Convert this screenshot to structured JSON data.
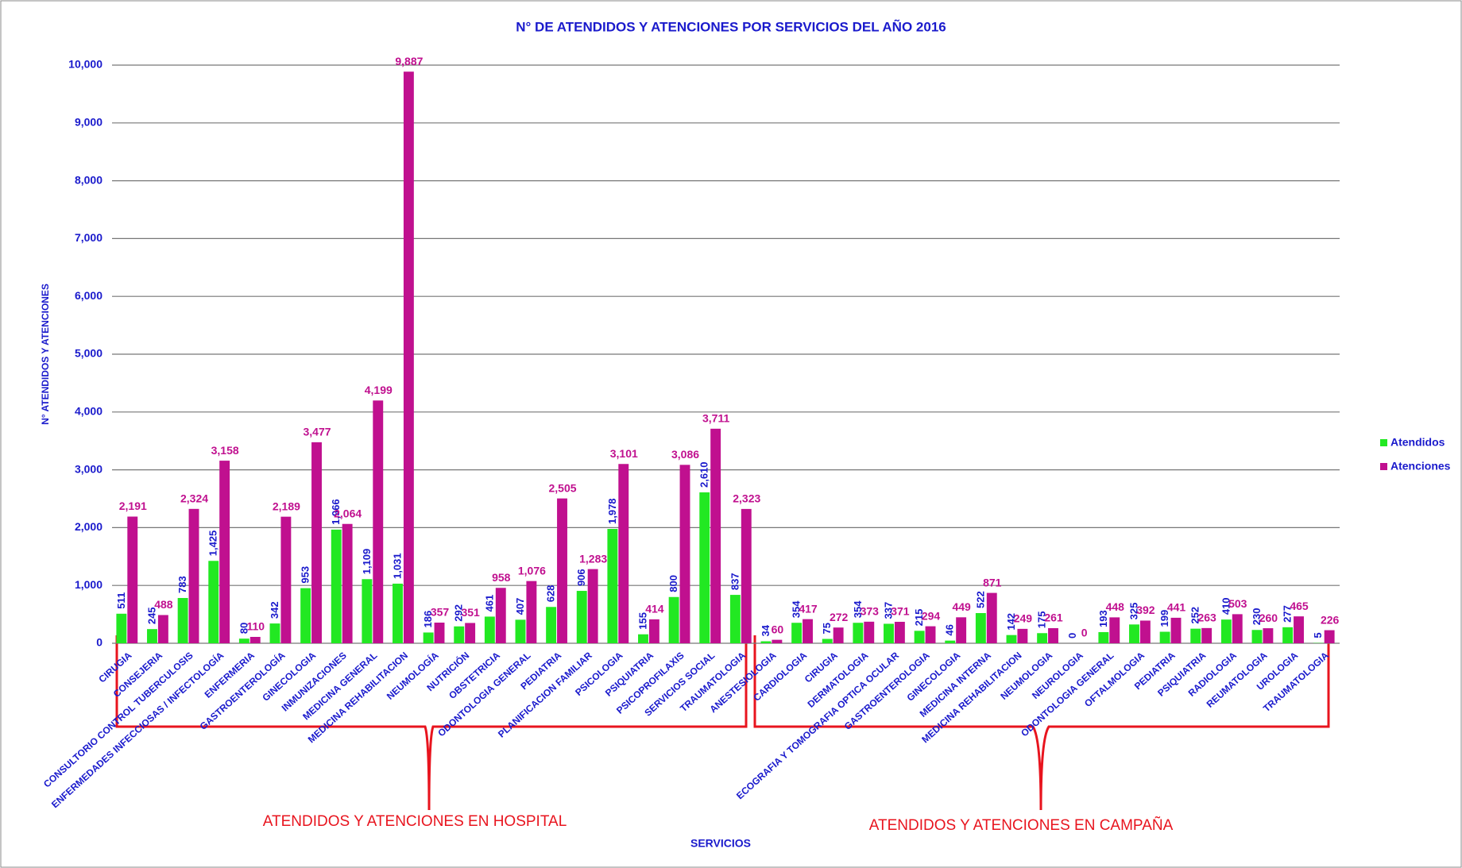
{
  "chart_data": {
    "type": "bar",
    "title": "N° DE ATENDIDOS Y ATENCIONES POR SERVICIOS DEL AÑO 2016",
    "x_label": "SERVICIOS",
    "y_label": "N° ATENDIDOS Y ATENCIONES",
    "annotations": [
      "ATENDIDOS Y ATENCIONES EN HOSPITAL",
      "ATENDIDOS Y ATENCIONES EN CAMPAÑA"
    ],
    "categories": [
      "CIRUGIA",
      "CONSEJERIA",
      "CONSULTORIO CONTROL TUBERCULOSIS",
      "ENFERMEDADES INFECCIOSAS / INFECTOLOGÍA",
      "ENFERMERIA",
      "GASTROENTEROLOGÍA",
      "GINECOLOGIA",
      "INMUNIZACIONES",
      "MEDICINA GENERAL",
      "MEDICINA REHABILITACION",
      "NEUMOLOGÍA",
      "NUTRICIÓN",
      "OBSTETRICIA",
      "ODONTOLOGIA GENERAL",
      "PEDIATRIA",
      "PLANIFICACION FAMILIAR",
      "PSICOLOGIA",
      "PSIQUIATRIA",
      "PSICOPROFILAXIS",
      "SERVICIOS SOCIAL",
      "TRAUMATOLOGIA",
      "ANESTESIOLOGIA",
      "CARDIOLOGIA",
      "CIRUGIA",
      "DERMATOLOGIA",
      "ECOGRAFIA Y TOMOGRAFIA OPTICA OCULAR",
      "GASTROENTEROLOGIA",
      "GINECOLOGIA",
      "MEDICINA INTERNA",
      "MEDICINA REHABILITACION",
      "NEUMOLOGIA",
      "NEUROLOGIA",
      "ODONTOLOGIA GENERAL",
      "OFTALMOLOGIA",
      "PEDIATRIA",
      "PSIQUIATRIA",
      "RADIOLOGIA",
      "REUMATOLOGIA",
      "UROLOGIA",
      "TRAUMATOLOGIA"
    ],
    "series": [
      {
        "name": "Atendidos",
        "color": "#22e822",
        "label_color": "#1a1acc",
        "values": [
          511,
          245,
          783,
          1425,
          80,
          342,
          953,
          1966,
          1109,
          1031,
          186,
          292,
          461,
          407,
          628,
          906,
          1978,
          155,
          800,
          2610,
          837,
          34,
          354,
          75,
          354,
          337,
          215,
          46,
          522,
          142,
          175,
          0,
          193,
          325,
          199,
          252,
          410,
          230,
          277,
          5
        ],
        "value_labels": [
          "511",
          "245",
          "783",
          "1,425",
          "80",
          "342",
          "953",
          "1,966",
          "1,109",
          "1,031",
          "186",
          "292",
          "461",
          "407",
          "628",
          "906",
          "1,978",
          "155",
          "800",
          "2,610",
          "837",
          "34",
          "354",
          "75",
          "354",
          "337",
          "215",
          "46",
          "522",
          "142",
          "175",
          "0",
          "193",
          "325",
          "199",
          "252",
          "410",
          "230",
          "277",
          "5"
        ]
      },
      {
        "name": "Atenciones",
        "color": "#c0108f",
        "label_color": "#c0108f",
        "values": [
          2191,
          488,
          2324,
          3158,
          110,
          2189,
          3477,
          2064,
          4199,
          9887,
          357,
          351,
          958,
          1076,
          2505,
          1283,
          3101,
          414,
          3086,
          3711,
          2323,
          60,
          417,
          272,
          373,
          371,
          294,
          449,
          871,
          249,
          261,
          0,
          448,
          392,
          441,
          263,
          503,
          260,
          465,
          226
        ],
        "value_labels": [
          "2,191",
          "488",
          "2,324",
          "3,158",
          "110",
          "2,189",
          "3,477",
          "2,064",
          "4,199",
          "9,887",
          "357",
          "351",
          "958",
          "1,076",
          "2,505",
          "1,283",
          "3,101",
          "414",
          "3,086",
          "3,711",
          "2,323",
          "60",
          "417",
          "272",
          "373",
          "371",
          "294",
          "449",
          "871",
          "249",
          "261",
          "0",
          "448",
          "392",
          "441",
          "263",
          "503",
          "260",
          "465",
          "226"
        ]
      }
    ],
    "ylim": [
      0,
      10000
    ],
    "yticks": [
      0,
      {
        "value": 1000,
        "label": "1,000"
      },
      {
        "value": 2000,
        "label": "2,000"
      },
      {
        "value": 3000,
        "label": "3,000"
      },
      {
        "value": 4000,
        "label": "4,000"
      },
      {
        "value": 5000,
        "label": "5,000"
      },
      {
        "value": 6000,
        "label": "6,000"
      },
      {
        "value": 7000,
        "label": "7,000"
      },
      {
        "value": 8000,
        "label": "8,000"
      },
      {
        "value": 9000,
        "label": "9,000"
      },
      {
        "value": 10000,
        "label": "10,000"
      }
    ],
    "grid": true,
    "legend": "right"
  }
}
